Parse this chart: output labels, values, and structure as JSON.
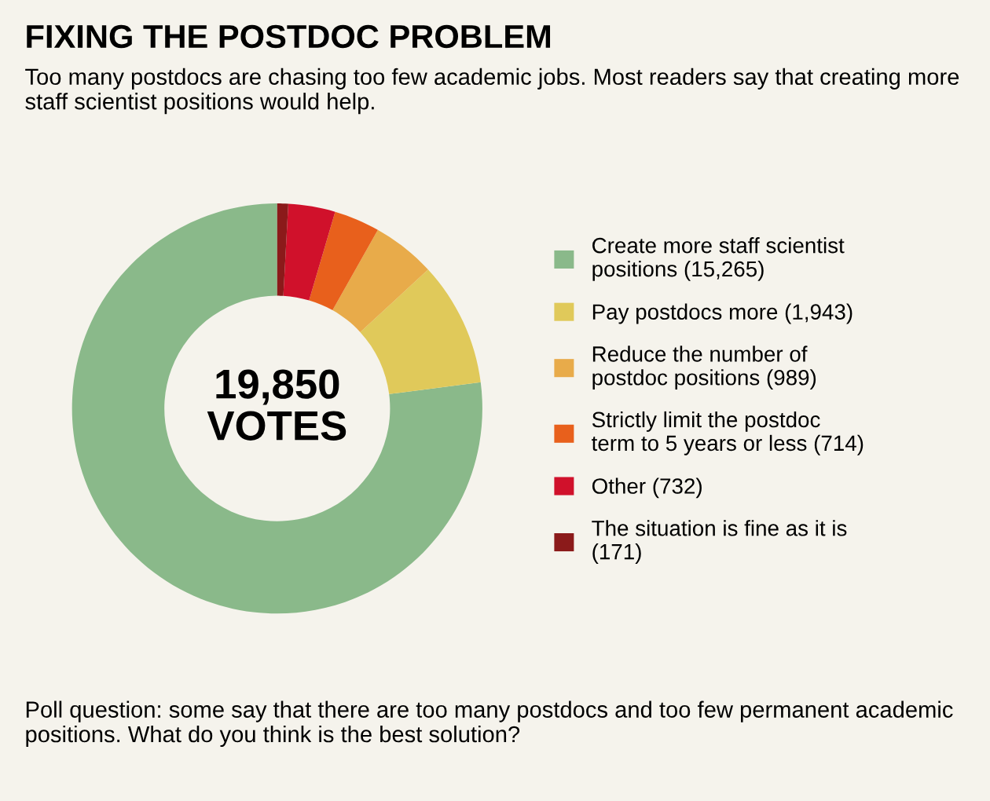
{
  "chart_data": {
    "type": "donut",
    "title": "FIXING THE POSTDOC PROBLEM",
    "subtitle": "Too many postdocs are chasing too few academic jobs. Most readers say that creating more staff scientist positions would help.",
    "categories": [
      "Create more staff scientist\npositions (15,265)",
      "Pay postdocs more (1,943)",
      "Reduce the number of\npostdoc positions (989)",
      "Strictly limit the postdoc\nterm to 5 years or less (714)",
      "Other (732)",
      "The situation is fine as it is\n(171)"
    ],
    "values": [
      15265,
      1943,
      989,
      714,
      732,
      171
    ],
    "colors": [
      "#8ab98a",
      "#e0c95a",
      "#e8ab4a",
      "#e8601c",
      "#d0112b",
      "#8b1a1a"
    ],
    "legend": "right",
    "annotations": [
      "19,850\nVOTES",
      "Poll question: some say that there are too many postdocs and too few permanent academic positions. What do you think is the best solution?"
    ]
  }
}
